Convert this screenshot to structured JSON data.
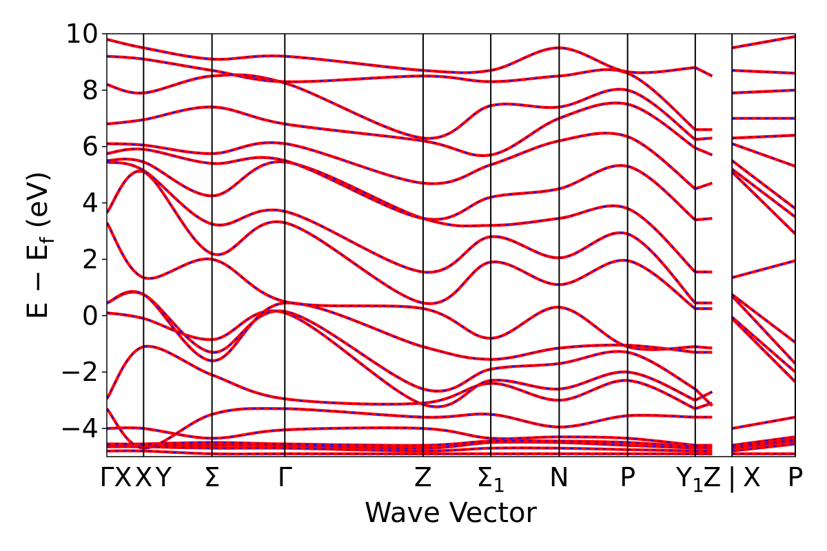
{
  "chart_data": {
    "type": "line",
    "title": "",
    "xlabel": "Wave Vector",
    "ylabel_main": "E − E",
    "ylabel_sub": "f",
    "ylabel_unit": " (eV)",
    "ylim": [
      -5,
      10
    ],
    "yticks": [
      -4,
      -2,
      0,
      2,
      4,
      6,
      8,
      10
    ],
    "ytick_labels": [
      "−4",
      "−2",
      "0",
      "2",
      "4",
      "6",
      "8",
      "10"
    ],
    "xlim": [
      0,
      9.36
    ],
    "kpoint_lines": [
      0.5,
      1.43,
      2.42,
      4.3,
      5.22,
      6.15,
      7.08,
      8.0,
      8.5,
      9.36
    ],
    "kpoint_labels": [
      {
        "x": 0.0,
        "text": "Γ"
      },
      {
        "x": 0.22,
        "text": "X"
      },
      {
        "x": 0.5,
        "text": "X"
      },
      {
        "x": 0.77,
        "text": "Y"
      },
      {
        "x": 1.43,
        "text": "Σ"
      },
      {
        "x": 2.42,
        "text": "Γ"
      },
      {
        "x": 4.3,
        "text": "Z"
      },
      {
        "x": 5.22,
        "text": "Σ",
        "sub": "1"
      },
      {
        "x": 6.15,
        "text": "N"
      },
      {
        "x": 7.08,
        "text": "P"
      },
      {
        "x": 7.93,
        "text": "Y",
        "sub": "1"
      },
      {
        "x": 8.23,
        "text": "Z"
      },
      {
        "x": 8.5,
        "text": "|"
      },
      {
        "x": 8.77,
        "text": "X"
      },
      {
        "x": 9.36,
        "text": "P"
      }
    ],
    "segments": [
      {
        "x": [
          0.0,
          0.5,
          1.43,
          2.42,
          4.3,
          5.22,
          6.15,
          7.08,
          8.0
        ],
        "bands": [
          [
            -4.8,
            -4.8,
            -4.9,
            -4.9,
            -4.9,
            -4.9,
            -4.9,
            -4.9,
            -4.9
          ],
          [
            -4.65,
            -4.65,
            -4.7,
            -4.7,
            -4.8,
            -4.7,
            -4.7,
            -4.75,
            -4.8
          ],
          [
            -4.6,
            -4.6,
            -4.6,
            -4.6,
            -4.7,
            -4.5,
            -4.5,
            -4.6,
            -4.7
          ],
          [
            -4.55,
            -4.55,
            -4.5,
            -4.55,
            -4.6,
            -4.45,
            -4.45,
            -4.5,
            -4.65
          ],
          [
            -4.0,
            -4.0,
            -4.35,
            -4.05,
            -4.0,
            -4.35,
            -4.3,
            -4.35,
            -4.6
          ],
          [
            -3.3,
            -4.7,
            -3.5,
            -3.3,
            -3.6,
            -3.5,
            -3.95,
            -3.55,
            -3.6
          ],
          [
            -2.95,
            -1.1,
            -2.1,
            -2.95,
            -3.1,
            -2.4,
            -3.0,
            -2.3,
            -3.3
          ],
          [
            0.1,
            -0.1,
            -0.85,
            0.1,
            -3.15,
            -2.3,
            -2.6,
            -2.0,
            -3.0
          ],
          [
            0.45,
            0.75,
            -1.3,
            0.15,
            -2.6,
            -1.9,
            -1.7,
            -1.3,
            -2.6
          ],
          [
            0.45,
            0.75,
            -1.6,
            0.45,
            -1.1,
            -1.55,
            -1.15,
            -1.05,
            -1.3
          ],
          [
            3.3,
            1.35,
            2.0,
            0.5,
            0.25,
            -0.8,
            0.3,
            -1.1,
            -1.1
          ],
          [
            3.65,
            5.1,
            2.2,
            3.3,
            0.45,
            1.9,
            1.1,
            1.95,
            0.25
          ],
          [
            5.45,
            5.15,
            3.25,
            3.7,
            1.55,
            2.8,
            2.05,
            2.9,
            0.45
          ],
          [
            5.5,
            5.45,
            4.25,
            5.45,
            3.45,
            3.2,
            3.45,
            3.8,
            1.55
          ],
          [
            5.75,
            5.9,
            5.4,
            5.5,
            3.45,
            4.2,
            4.5,
            5.3,
            3.4
          ],
          [
            6.1,
            6.05,
            5.75,
            6.1,
            4.7,
            5.35,
            6.2,
            6.35,
            4.5
          ],
          [
            6.8,
            6.95,
            7.4,
            6.8,
            6.2,
            5.7,
            7.0,
            7.5,
            5.95
          ],
          [
            8.2,
            7.9,
            8.5,
            8.25,
            6.3,
            7.45,
            7.4,
            8.0,
            6.25
          ],
          [
            9.2,
            9.1,
            8.7,
            8.3,
            8.5,
            8.3,
            8.5,
            8.6,
            6.6
          ],
          [
            9.8,
            9.5,
            9.1,
            9.2,
            8.7,
            8.7,
            9.5,
            8.65,
            8.8
          ]
        ]
      },
      {
        "x": [
          8.0,
          8.23
        ],
        "bands": [
          [
            -4.9,
            -4.9
          ],
          [
            -4.8,
            -4.8
          ],
          [
            -4.7,
            -4.7
          ],
          [
            -4.65,
            -4.65
          ],
          [
            -4.6,
            -4.6
          ],
          [
            -3.6,
            -3.6
          ],
          [
            -3.3,
            -3.1
          ],
          [
            -3.0,
            -2.7
          ],
          [
            -2.6,
            -3.2
          ],
          [
            -1.3,
            -1.3
          ],
          [
            -1.1,
            -1.15
          ],
          [
            0.25,
            0.25
          ],
          [
            0.45,
            0.45
          ],
          [
            1.55,
            1.55
          ],
          [
            3.4,
            3.45
          ],
          [
            4.5,
            4.7
          ],
          [
            5.95,
            5.7
          ],
          [
            6.25,
            6.3
          ],
          [
            6.6,
            6.6
          ],
          [
            8.8,
            8.5
          ]
        ]
      },
      {
        "x": [
          8.5,
          9.36
        ],
        "bands": [
          [
            -4.9,
            -4.9
          ],
          [
            -4.8,
            -4.55
          ],
          [
            -4.7,
            -4.45
          ],
          [
            -4.65,
            -4.4
          ],
          [
            -4.6,
            -4.3
          ],
          [
            -4.0,
            -3.6
          ],
          [
            -0.1,
            -2.35
          ],
          [
            -0.05,
            -2.0
          ],
          [
            0.7,
            -1.7
          ],
          [
            0.75,
            -0.95
          ],
          [
            1.35,
            1.95
          ],
          [
            5.1,
            2.9
          ],
          [
            5.2,
            3.5
          ],
          [
            5.5,
            3.8
          ],
          [
            6.1,
            5.3
          ],
          [
            6.3,
            6.4
          ],
          [
            7.0,
            7.0
          ],
          [
            7.9,
            8.0
          ],
          [
            8.7,
            8.6
          ],
          [
            9.5,
            9.9
          ]
        ]
      }
    ]
  },
  "colors": {
    "band_line": "#ff0000",
    "band_dash": "#0000ff",
    "axis": "#000000",
    "background": "#ffffff"
  }
}
